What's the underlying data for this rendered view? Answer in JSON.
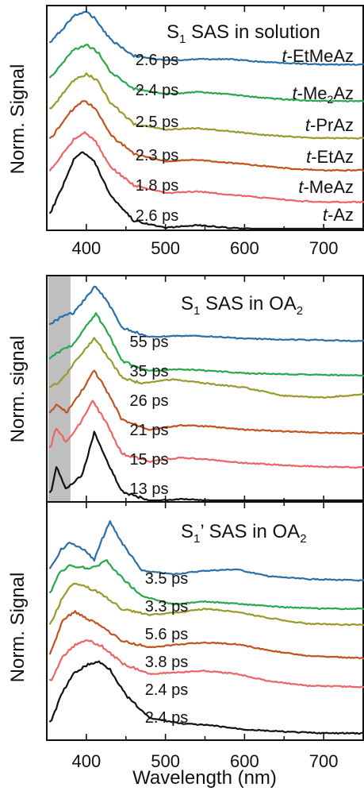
{
  "figure": {
    "xlabel": "Wavelength (nm)",
    "xticks": [
      "400",
      "500",
      "600",
      "700"
    ]
  },
  "panels": [
    {
      "title": {
        "main": "S",
        "sub": "1",
        "tail": " SAS in solution"
      },
      "ylabel": "Norm. Signal",
      "show_xticklabels": true,
      "labels": [
        {
          "prefix": "t",
          "rest": "-EtMeAz",
          "sub": "",
          "after": ""
        },
        {
          "prefix": "t",
          "rest": "-Me",
          "sub": "2",
          "after": "Az"
        },
        {
          "prefix": "t",
          "rest": "-PrAz",
          "sub": "",
          "after": ""
        },
        {
          "prefix": "t",
          "rest": "-EtAz",
          "sub": "",
          "after": ""
        },
        {
          "prefix": "t",
          "rest": "-MeAz",
          "sub": "",
          "after": ""
        },
        {
          "prefix": "t",
          "rest": "-Az",
          "sub": "",
          "after": ""
        }
      ]
    },
    {
      "title": {
        "main": "S",
        "sub": "1",
        "tail": " SAS in OA",
        "sub2": "2"
      },
      "ylabel": "Norm. signal",
      "show_xticklabels": false,
      "shaded_region_nm": [
        352,
        380
      ],
      "shade_color": "#a9a9a9"
    },
    {
      "title": {
        "main": "S",
        "sub": "1",
        "tail": "’ SAS in OA",
        "sub2": "2"
      },
      "ylabel": "Norm. Signal",
      "show_xticklabels": false
    }
  ],
  "chart_data": [
    {
      "type": "line",
      "title": "S1 SAS in solution",
      "xlabel": "Wavelength (nm)",
      "ylabel": "Norm. Signal",
      "xlim": [
        350,
        750
      ],
      "yscale": "normalized, vertically offset",
      "series": [
        {
          "name": "t-EtMeAz",
          "time_label": "2.6 ps",
          "color": "#2a6fa8",
          "peak_nm": 398,
          "x": [
            355,
            370,
            385,
            398,
            410,
            430,
            460,
            500,
            540,
            580,
            620,
            660,
            700,
            750
          ],
          "y": [
            0.55,
            0.75,
            0.95,
            1.0,
            0.92,
            0.6,
            0.35,
            0.28,
            0.3,
            0.3,
            0.26,
            0.24,
            0.22,
            0.22
          ]
        },
        {
          "name": "t-Me2Az",
          "time_label": "2.4 ps",
          "color": "#27a84a",
          "peak_nm": 402,
          "x": [
            355,
            370,
            385,
            402,
            415,
            430,
            460,
            500,
            540,
            580,
            620,
            660,
            700,
            750
          ],
          "y": [
            0.55,
            0.75,
            0.95,
            1.0,
            0.9,
            0.62,
            0.38,
            0.3,
            0.33,
            0.3,
            0.25,
            0.22,
            0.2,
            0.2
          ]
        },
        {
          "name": "t-PrAz",
          "time_label": "2.5 ps",
          "color": "#9a9a2c",
          "peak_nm": 400,
          "x": [
            355,
            370,
            385,
            400,
            415,
            430,
            460,
            500,
            540,
            580,
            620,
            660,
            700,
            750
          ],
          "y": [
            0.5,
            0.72,
            0.92,
            1.0,
            0.9,
            0.6,
            0.3,
            0.22,
            0.24,
            0.2,
            0.15,
            0.12,
            0.1,
            0.1
          ]
        },
        {
          "name": "t-EtAz",
          "time_label": "2.3 ps",
          "color": "#c4521f",
          "peak_nm": 398,
          "x": [
            355,
            370,
            385,
            398,
            412,
            430,
            460,
            500,
            540,
            580,
            620,
            660,
            700,
            750
          ],
          "y": [
            0.5,
            0.72,
            0.92,
            1.0,
            0.9,
            0.55,
            0.3,
            0.2,
            0.22,
            0.18,
            0.14,
            0.1,
            0.08,
            0.08
          ]
        },
        {
          "name": "t-MeAz",
          "time_label": "1.8 ps",
          "color": "#ec6466",
          "peak_nm": 398,
          "x": [
            355,
            370,
            385,
            398,
            412,
            430,
            460,
            500,
            540,
            580,
            620,
            660,
            700,
            750
          ],
          "y": [
            0.5,
            0.72,
            0.92,
            1.0,
            0.88,
            0.55,
            0.3,
            0.2,
            0.22,
            0.18,
            0.14,
            0.1,
            0.08,
            0.08
          ]
        },
        {
          "name": "t-Az",
          "time_label": "2.6 ps",
          "color": "#111111",
          "peak_nm": 395,
          "x": [
            355,
            370,
            385,
            395,
            410,
            430,
            460,
            500,
            540,
            580,
            620,
            660,
            700,
            750
          ],
          "y": [
            0.3,
            0.6,
            0.92,
            1.0,
            0.88,
            0.5,
            0.2,
            0.12,
            0.15,
            0.12,
            0.1,
            0.08,
            0.06,
            0.06
          ]
        }
      ]
    },
    {
      "type": "line",
      "title": "S1 SAS in OA2",
      "xlabel": "Wavelength (nm)",
      "ylabel": "Norm. signal",
      "xlim": [
        350,
        750
      ],
      "series": [
        {
          "time_label": "55 ps",
          "color": "#2a6fa8",
          "x": [
            355,
            370,
            385,
            400,
            412,
            425,
            445,
            480,
            520,
            560,
            600,
            650,
            700,
            750
          ],
          "y": [
            0.5,
            0.6,
            0.65,
            0.85,
            1.0,
            0.82,
            0.45,
            0.32,
            0.34,
            0.33,
            0.3,
            0.29,
            0.28,
            0.27
          ]
        },
        {
          "time_label": "35 ps",
          "color": "#27a84a",
          "x": [
            355,
            370,
            385,
            400,
            412,
            425,
            445,
            480,
            520,
            560,
            600,
            650,
            700,
            750
          ],
          "y": [
            0.45,
            0.55,
            0.62,
            0.85,
            1.0,
            0.8,
            0.4,
            0.28,
            0.3,
            0.28,
            0.25,
            0.24,
            0.23,
            0.22
          ]
        },
        {
          "time_label": "26 ps",
          "color": "#9a9a2c",
          "x": [
            355,
            370,
            385,
            398,
            410,
            425,
            445,
            470,
            510,
            550,
            600,
            650,
            700,
            750
          ],
          "y": [
            0.4,
            0.5,
            0.7,
            0.85,
            1.0,
            0.8,
            0.52,
            0.45,
            0.5,
            0.45,
            0.4,
            0.3,
            0.28,
            0.32
          ]
        },
        {
          "time_label": "21 ps",
          "color": "#c4521f",
          "x": [
            355,
            362,
            375,
            392,
            410,
            425,
            445,
            480,
            520,
            560,
            600,
            650,
            700,
            750
          ],
          "y": [
            0.45,
            0.55,
            0.45,
            0.7,
            1.0,
            0.75,
            0.35,
            0.22,
            0.28,
            0.26,
            0.22,
            0.2,
            0.18,
            0.17
          ]
        },
        {
          "time_label": "15 ps",
          "color": "#ec6466",
          "x": [
            355,
            362,
            375,
            392,
            408,
            425,
            445,
            480,
            520,
            560,
            600,
            650,
            700,
            750
          ],
          "y": [
            0.4,
            0.65,
            0.45,
            0.7,
            1.0,
            0.72,
            0.3,
            0.2,
            0.25,
            0.22,
            0.18,
            0.15,
            0.13,
            0.12
          ]
        },
        {
          "time_label": "13 ps",
          "color": "#111111",
          "x": [
            355,
            362,
            375,
            395,
            410,
            425,
            445,
            480,
            520,
            560,
            600,
            650,
            700,
            750
          ],
          "y": [
            0.2,
            0.55,
            0.25,
            0.45,
            1.0,
            0.65,
            0.22,
            0.1,
            0.12,
            0.1,
            0.07,
            0.05,
            0.04,
            0.04
          ]
        }
      ]
    },
    {
      "type": "line",
      "title": "S1’ SAS in OA2",
      "xlabel": "Wavelength (nm)",
      "ylabel": "Norm. Signal",
      "xlim": [
        350,
        750
      ],
      "series": [
        {
          "time_label": "3.5 ps",
          "color": "#2a6fa8",
          "x": [
            355,
            368,
            380,
            395,
            410,
            420,
            430,
            445,
            470,
            510,
            550,
            590,
            630,
            680,
            750
          ],
          "y": [
            0.35,
            0.6,
            0.7,
            0.62,
            0.45,
            0.75,
            1.0,
            0.7,
            0.3,
            0.25,
            0.3,
            0.32,
            0.22,
            0.18,
            0.16
          ]
        },
        {
          "time_label": "3.3 ps",
          "color": "#27a84a",
          "x": [
            355,
            365,
            380,
            400,
            415,
            425,
            440,
            470,
            510,
            550,
            600,
            650,
            700,
            750
          ],
          "y": [
            0.4,
            0.75,
            0.9,
            0.85,
            0.9,
            1.0,
            0.75,
            0.35,
            0.2,
            0.25,
            0.2,
            0.15,
            0.12,
            0.12
          ]
        },
        {
          "time_label": "5.6 ps",
          "color": "#9a9a2c",
          "x": [
            355,
            370,
            385,
            400,
            420,
            445,
            480,
            520,
            550,
            590,
            630,
            680,
            750
          ],
          "y": [
            0.3,
            0.75,
            1.0,
            0.92,
            0.8,
            0.55,
            0.45,
            0.5,
            0.55,
            0.5,
            0.4,
            0.3,
            0.28
          ]
        },
        {
          "time_label": "3.8 ps",
          "color": "#c4521f",
          "x": [
            355,
            370,
            385,
            400,
            420,
            445,
            480,
            520,
            550,
            590,
            630,
            680,
            750
          ],
          "y": [
            0.3,
            0.85,
            1.0,
            0.88,
            0.75,
            0.5,
            0.4,
            0.45,
            0.48,
            0.45,
            0.35,
            0.25,
            0.22
          ]
        },
        {
          "time_label": "2.4 ps",
          "color": "#ec6466",
          "x": [
            355,
            370,
            385,
            400,
            420,
            445,
            480,
            520,
            550,
            590,
            630,
            680,
            750
          ],
          "y": [
            0.3,
            0.7,
            0.9,
            1.0,
            0.88,
            0.6,
            0.42,
            0.45,
            0.47,
            0.42,
            0.3,
            0.22,
            0.2
          ]
        },
        {
          "time_label": "2.4 ps",
          "color": "#111111",
          "x": [
            355,
            370,
            385,
            400,
            415,
            430,
            450,
            480,
            520,
            560,
            600,
            650,
            700,
            750
          ],
          "y": [
            0.2,
            0.6,
            0.85,
            0.95,
            1.0,
            0.9,
            0.55,
            0.25,
            0.18,
            0.15,
            0.1,
            0.07,
            0.05,
            0.05
          ]
        }
      ]
    }
  ]
}
